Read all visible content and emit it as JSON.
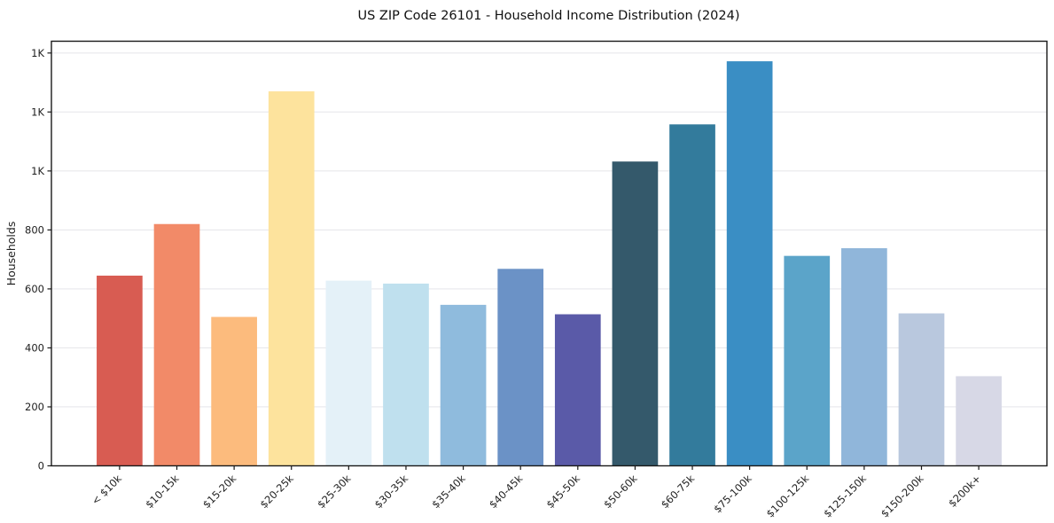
{
  "page": {
    "background": "#ffffff"
  },
  "chart_data": {
    "type": "bar",
    "title": "US ZIP Code 26101 - Household Income Distribution (2024)",
    "xlabel": "",
    "ylabel": "Households",
    "categories": [
      "< $10k",
      "$10-15k",
      "$15-20k",
      "$20-25k",
      "$25-30k",
      "$30-35k",
      "$35-40k",
      "$40-45k",
      "$45-50k",
      "$50-60k",
      "$60-75k",
      "$75-100k",
      "$100-125k",
      "$125-150k",
      "$150-200k",
      "$200k+"
    ],
    "values": [
      645,
      820,
      505,
      1270,
      628,
      618,
      546,
      668,
      514,
      1032,
      1158,
      1372,
      712,
      738,
      517,
      304
    ],
    "bar_colors": [
      "#d85c52",
      "#f28a68",
      "#fcbb7d",
      "#fde39d",
      "#e4f1f8",
      "#bfe0ee",
      "#8fbbdd",
      "#6b92c6",
      "#5a5aa8",
      "#34596b",
      "#337b9c",
      "#3a8ec4",
      "#5ba4c9",
      "#90b6da",
      "#b9c8de",
      "#d7d8e6"
    ],
    "ylim": [
      0,
      1440
    ],
    "yticks": {
      "values": [
        0,
        200,
        400,
        600,
        800,
        1000,
        1200,
        1400
      ],
      "labels": [
        "0",
        "200",
        "400",
        "600",
        "800",
        "1K",
        "1K",
        "1K"
      ]
    },
    "x_tick_rotation": 45,
    "grid": "horizontal",
    "legend": "none",
    "colors": {
      "grid": "#e8e8ec",
      "spine": "#1a1a1a",
      "tick_text": "#1f1f1f",
      "title_text": "#111111",
      "background": "#ffffff"
    }
  }
}
